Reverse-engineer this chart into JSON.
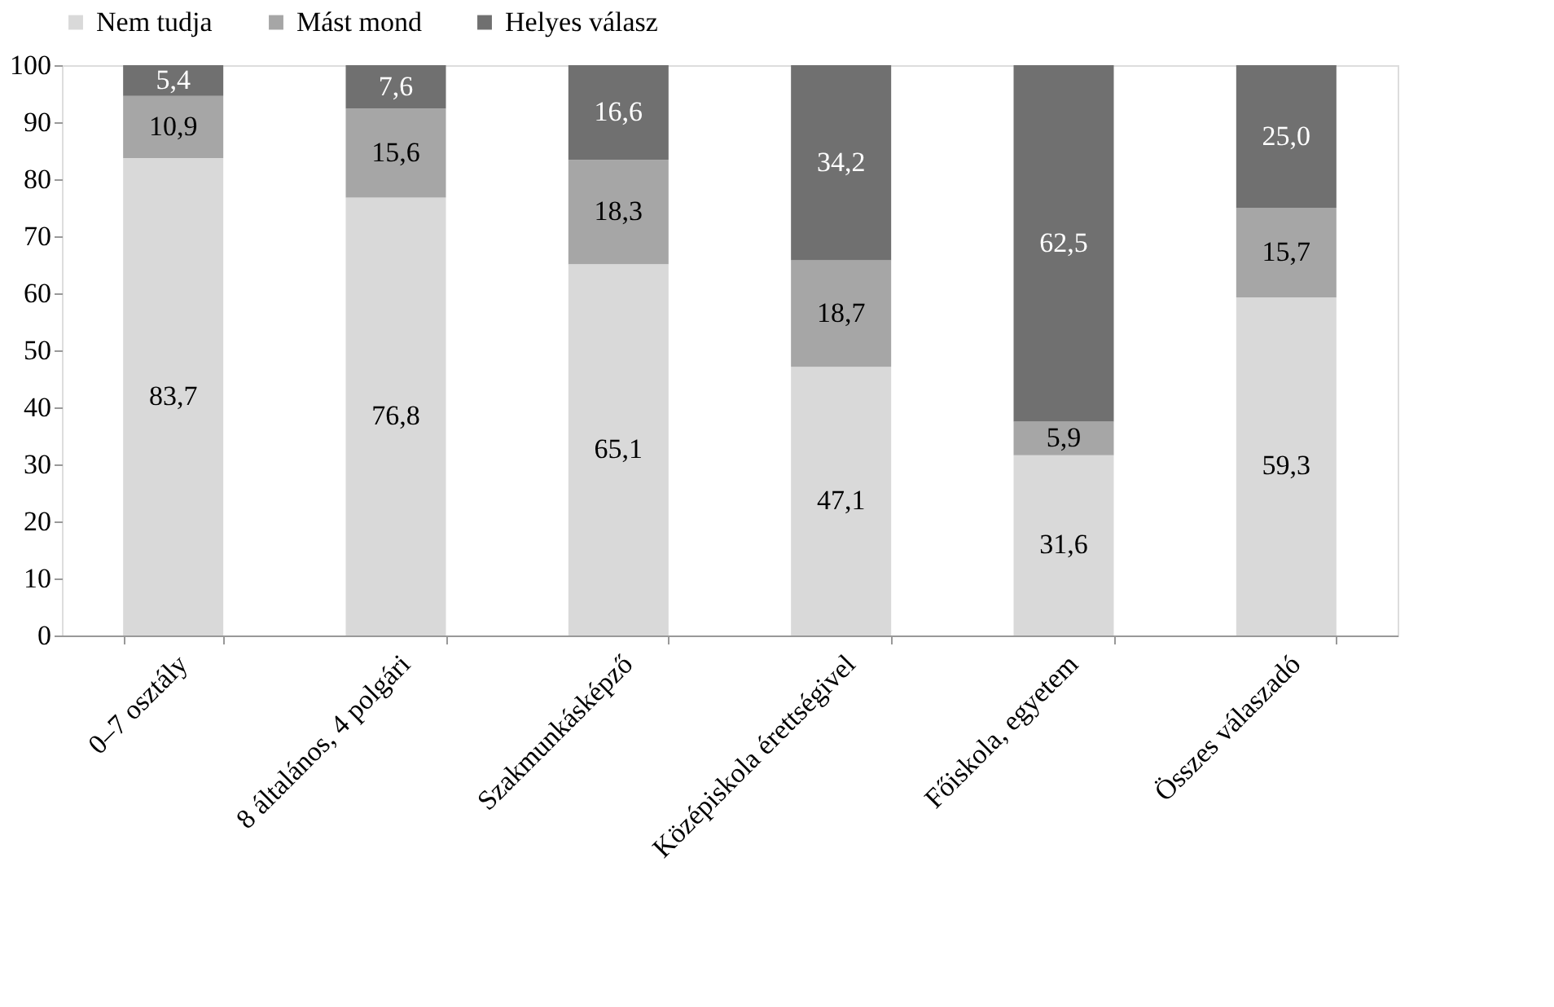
{
  "chart_data": {
    "type": "bar",
    "stacked": true,
    "categories": [
      "0–7 osztály",
      "8 általános, 4 polgári",
      "Szakmunkásképző",
      "Középiskola érettségivel",
      "Főiskola, egyetem",
      "Összes válaszadó"
    ],
    "series": [
      {
        "name": "Nem tudja",
        "color": "#d9d9d9",
        "values": [
          83.7,
          76.8,
          65.1,
          47.1,
          31.6,
          59.3
        ],
        "value_labels": [
          "83,7",
          "76,8",
          "65,1",
          "47,1",
          "31,6",
          "59,3"
        ]
      },
      {
        "name": "Mást mond",
        "color": "#a6a6a6",
        "values": [
          10.9,
          15.6,
          18.3,
          18.7,
          5.9,
          15.7
        ],
        "value_labels": [
          "10,9",
          "15,6",
          "18,3",
          "18,7",
          "5,9",
          "15,7"
        ]
      },
      {
        "name": "Helyes válasz",
        "color": "#707070",
        "values": [
          5.4,
          7.6,
          16.6,
          34.2,
          62.5,
          25.0
        ],
        "value_labels": [
          "5,4",
          "7,6",
          "16,6",
          "34,2",
          "62,5",
          "25,0"
        ]
      }
    ],
    "ylim": [
      0,
      100
    ],
    "yticks": [
      0,
      10,
      20,
      30,
      40,
      50,
      60,
      70,
      80,
      90,
      100
    ],
    "grid": false,
    "legend": "top"
  }
}
